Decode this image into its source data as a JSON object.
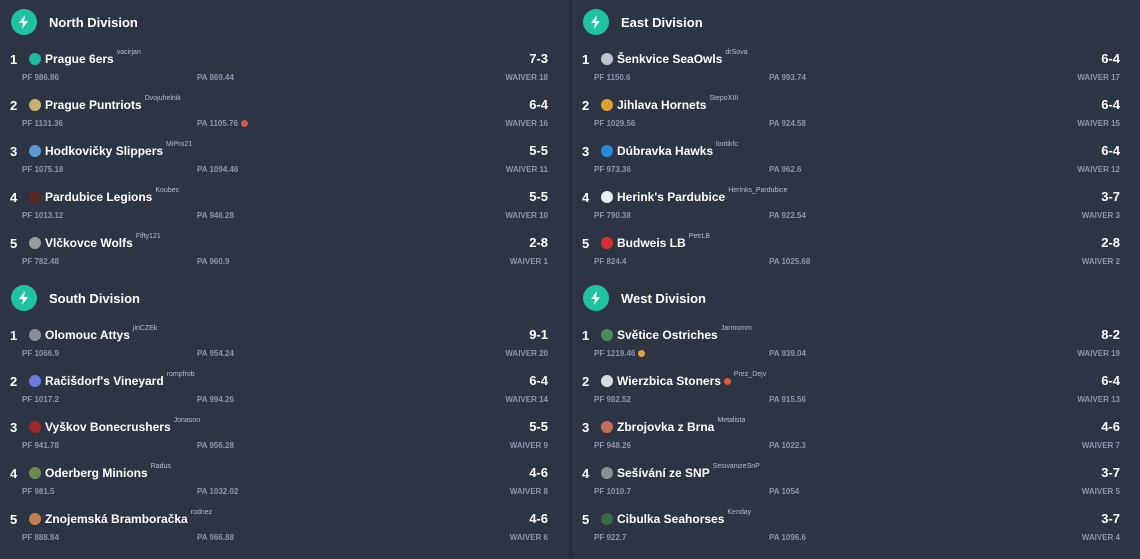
{
  "colors": {
    "background": "#2d3444",
    "accent": "#1fc3a0",
    "stat_text": "#8d97ab"
  },
  "header_icon": "lightning-bolt-icon",
  "divisions": [
    {
      "key": "north",
      "title": "North Division",
      "teams": [
        {
          "rank": "1",
          "name": "Prague 6ers",
          "owner": "vacirjan",
          "record": "7-3",
          "pf": "PF 986.86",
          "pa": "PA 869.44",
          "waiver": "WAIVER 18",
          "avatar_color": "#1fb8a0"
        },
        {
          "rank": "2",
          "name": "Prague Puntriots",
          "owner": "Dvojuhelnik",
          "record": "6-4",
          "pf": "PF 1131.36",
          "pa": "PA 1105.76",
          "pa_emoji": "poop-emoji",
          "waiver": "WAIVER 16",
          "avatar_color": "#c8b070"
        },
        {
          "rank": "3",
          "name": "Hodkovičky Slippers",
          "owner": "MiPro21",
          "record": "5-5",
          "pf": "PF 1075.18",
          "pa": "PA 1094.46",
          "waiver": "WAIVER 11",
          "avatar_color": "#5a9ad0"
        },
        {
          "rank": "4",
          "name": "Pardubice Legions",
          "owner": "Koubec",
          "record": "5-5",
          "pf": "PF 1013.12",
          "pa": "PA 946.28",
          "waiver": "WAIVER 10",
          "avatar_color": "#5a2a20"
        },
        {
          "rank": "5",
          "name": "Vlčkovce Wolfs",
          "owner": "Fifty121",
          "record": "2-8",
          "pf": "PF 782.48",
          "pa": "PA 960.9",
          "waiver": "WAIVER 1",
          "avatar_color": "#9a9a9a"
        }
      ]
    },
    {
      "key": "east",
      "title": "East Division",
      "teams": [
        {
          "rank": "1",
          "name": "Šenkvice SeaOwls",
          "owner": "drSova",
          "record": "6-4",
          "pf": "PF 1150.6",
          "pa": "PA 993.74",
          "waiver": "WAIVER 17",
          "avatar_color": "#bfc4cc"
        },
        {
          "rank": "2",
          "name": "Jihlava Hornets",
          "owner": "StepoXIII",
          "record": "6-4",
          "pf": "PF 1029.56",
          "pa": "PA 924.58",
          "waiver": "WAIVER 15",
          "avatar_color": "#e0a030"
        },
        {
          "rank": "3",
          "name": "Dúbravka Hawks",
          "owner": "lootikfc",
          "record": "6-4",
          "pf": "PF 973.36",
          "pa": "PA 962.6",
          "waiver": "WAIVER 12",
          "avatar_color": "#2a8ae0"
        },
        {
          "rank": "4",
          "name": "Herink's Pardubice",
          "owner": "Herinks_Pardubice",
          "record": "3-7",
          "pf": "PF 790.38",
          "pa": "PA 922.54",
          "waiver": "WAIVER 3",
          "avatar_color": "#e8eef5"
        },
        {
          "rank": "5",
          "name": "Budweis LB",
          "owner": "PetrLB",
          "record": "2-8",
          "pf": "PF 824.4",
          "pa": "PA 1025.68",
          "waiver": "WAIVER 2",
          "avatar_color": "#d83030"
        }
      ]
    },
    {
      "key": "south",
      "title": "South Division",
      "teams": [
        {
          "rank": "1",
          "name": "Olomouc Attys",
          "owner": "jiriCZEk",
          "record": "9-1",
          "pf": "PF 1066.9",
          "pa": "PA 954.24",
          "waiver": "WAIVER 20",
          "avatar_color": "#8a8f98"
        },
        {
          "rank": "2",
          "name": "Račišdorf's Vineyard",
          "owner": "rompfrob",
          "record": "6-4",
          "pf": "PF 1017.2",
          "pa": "PA 994.26",
          "waiver": "WAIVER 14",
          "avatar_color": "#6a7ae0"
        },
        {
          "rank": "3",
          "name": "Vyškov Bonecrushers",
          "owner": "Jonason",
          "record": "5-5",
          "pf": "PF 941.78",
          "pa": "PA 956.28",
          "waiver": "WAIVER 9",
          "avatar_color": "#a02828"
        },
        {
          "rank": "4",
          "name": "Oderberg Minions",
          "owner": "Radus",
          "record": "4-6",
          "pf": "PF 981.5",
          "pa": "PA 1032.02",
          "waiver": "WAIVER 8",
          "avatar_color": "#6a8a50"
        },
        {
          "rank": "5",
          "name": "Znojemská Bramboračka",
          "owner": "rodnez",
          "record": "4-6",
          "pf": "PF 888.84",
          "pa": "PA 966.88",
          "waiver": "WAIVER 6",
          "avatar_color": "#c08050"
        }
      ]
    },
    {
      "key": "west",
      "title": "West Division",
      "teams": [
        {
          "rank": "1",
          "name": "Světice Ostriches",
          "owner": "Jarmomm",
          "record": "8-2",
          "pf": "PF 1219.46",
          "pf_emoji": "laughing-emoji",
          "pa": "PA 939.04",
          "waiver": "WAIVER 19",
          "avatar_color": "#4a8a5a"
        },
        {
          "rank": "2",
          "name": "Wierzbica Stoners",
          "name_emoji": "badge-emoji",
          "owner": "Prez_Dejv",
          "record": "6-4",
          "pf": "PF 982.52",
          "pa": "PA 915.56",
          "waiver": "WAIVER 13",
          "avatar_color": "#d8dde5"
        },
        {
          "rank": "3",
          "name": "Zbrojovka z Brna",
          "owner": "Metalista",
          "record": "4-6",
          "pf": "PF 948.26",
          "pa": "PA 1022.3",
          "waiver": "WAIVER 7",
          "avatar_color": "#c07050"
        },
        {
          "rank": "4",
          "name": "Sešívání ze SNP",
          "owner": "SesivanizeSnP",
          "record": "3-7",
          "pf": "PF 1010.7",
          "pa": "PA 1054",
          "waiver": "WAIVER 5",
          "avatar_color": "#8a9090"
        },
        {
          "rank": "5",
          "name": "Cibulka Seahorses",
          "owner": "Kenday",
          "record": "3-7",
          "pf": "PF 922.7",
          "pa": "PA 1096.6",
          "waiver": "WAIVER 4",
          "avatar_color": "#3a6a4a"
        }
      ]
    }
  ]
}
